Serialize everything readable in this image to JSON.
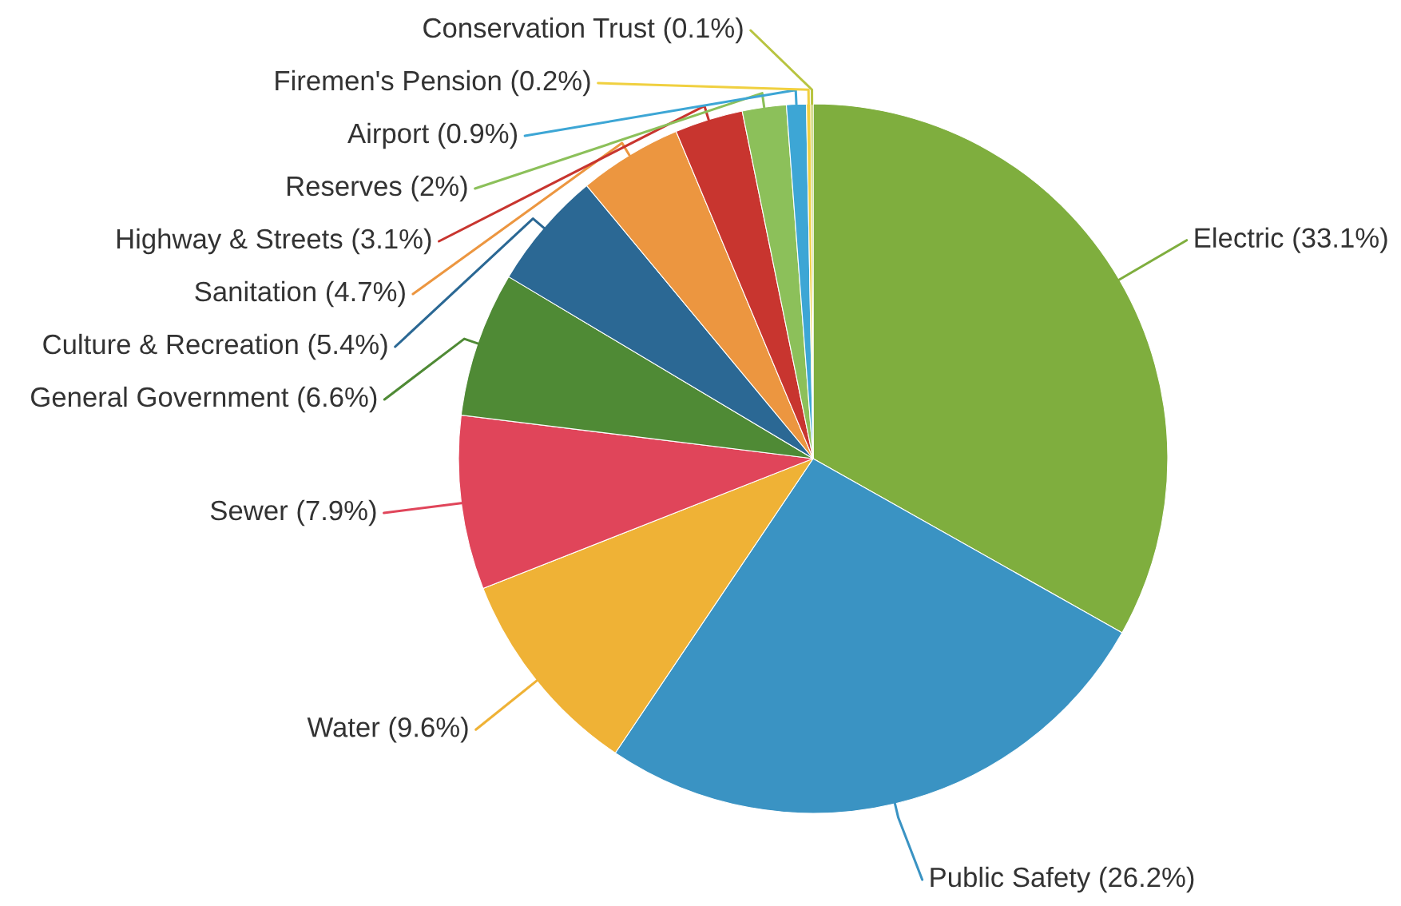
{
  "chart_data": {
    "type": "pie",
    "categories": [
      "Electric",
      "Public Safety",
      "Water",
      "Sewer",
      "General Government",
      "Culture & Recreation",
      "Sanitation",
      "Highway & Streets",
      "Reserves",
      "Airport",
      "Firemen's Pension",
      "Conservation Trust"
    ],
    "values": [
      33.1,
      26.2,
      9.6,
      7.9,
      6.6,
      5.4,
      4.7,
      3.1,
      2,
      0.9,
      0.2,
      0.1
    ],
    "value_labels": [
      "(33.1%)",
      "(26.2%)",
      "(9.6%)",
      "(7.9%)",
      "(6.6%)",
      "(5.4%)",
      "(4.7%)",
      "(3.1%)",
      "(2%)",
      "(0.9%)",
      "(0.2%)",
      "(0.1%)"
    ],
    "colors": [
      "#7fae3e",
      "#3a93c3",
      "#efb236",
      "#e0455a",
      "#4f8a35",
      "#2b6894",
      "#ec9640",
      "#c8352f",
      "#8cc05a",
      "#3da6d5",
      "#f0d040",
      "#b8c440"
    ]
  }
}
